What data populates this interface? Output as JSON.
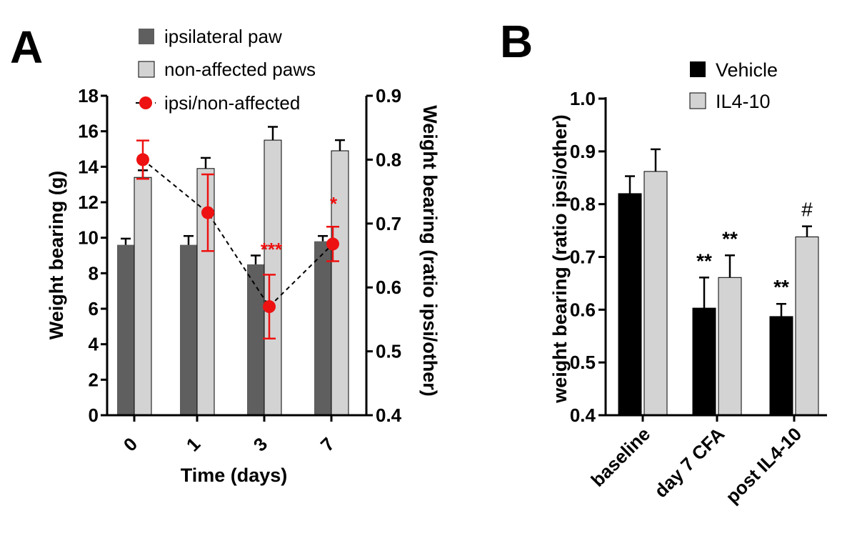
{
  "colors": {
    "ipsi_bar": "#5f5f5f",
    "nonaff_bar": "#d3d3d3",
    "ratio": "#ee1111",
    "vehicle_bar": "#000000",
    "il4_bar": "#d3d3d3",
    "axis": "#000000"
  },
  "chart_data": [
    {
      "panel": "A",
      "type": "bar",
      "categories": [
        "0",
        "1",
        "3",
        "7"
      ],
      "xlabel": "Time (days)",
      "ylabel": "Weight bearing (g)",
      "ylim": [
        0,
        18
      ],
      "yticks": [
        "0",
        "2",
        "4",
        "6",
        "8",
        "10",
        "12",
        "14",
        "16",
        "18"
      ],
      "series": [
        {
          "name": "ipsilateral paw",
          "values": [
            9.6,
            9.6,
            8.5,
            9.8
          ],
          "errors": [
            0.35,
            0.5,
            0.5,
            0.3
          ]
        },
        {
          "name": "non-affected paws",
          "values": [
            13.4,
            13.9,
            15.5,
            14.9
          ],
          "errors": [
            0.4,
            0.6,
            0.75,
            0.6
          ]
        }
      ],
      "secondary": {
        "type": "line",
        "name": "ipsi/non-affected",
        "ylabel": "Weight bearing (ratio ipsi/other)",
        "ylim": [
          0.4,
          0.9
        ],
        "yticks": [
          "0.4",
          "0.5",
          "0.6",
          "0.7",
          "0.8",
          "0.9"
        ],
        "values": [
          0.8,
          0.717,
          0.57,
          0.668
        ],
        "errors": [
          0.03,
          0.06,
          0.05,
          0.027
        ]
      },
      "annotations": [
        "",
        "",
        "***",
        "*"
      ]
    },
    {
      "panel": "B",
      "type": "bar",
      "categories": [
        "baseline",
        "day 7 CFA",
        "post IL4-10"
      ],
      "ylabel": "weight bearing (ratio ipsi/other)",
      "ylim": [
        0.4,
        1.0
      ],
      "yticks": [
        "0.4",
        "0.5",
        "0.6",
        "0.7",
        "0.8",
        "0.9",
        "1.0"
      ],
      "series": [
        {
          "name": "Vehicle",
          "values": [
            0.82,
            0.603,
            0.587
          ],
          "errors": [
            0.033,
            0.058,
            0.024
          ],
          "annotations": [
            "",
            "**",
            "**"
          ]
        },
        {
          "name": "IL4-10",
          "values": [
            0.862,
            0.661,
            0.738
          ],
          "errors": [
            0.042,
            0.042,
            0.02
          ],
          "annotations": [
            "",
            "**",
            "#"
          ]
        }
      ]
    }
  ]
}
